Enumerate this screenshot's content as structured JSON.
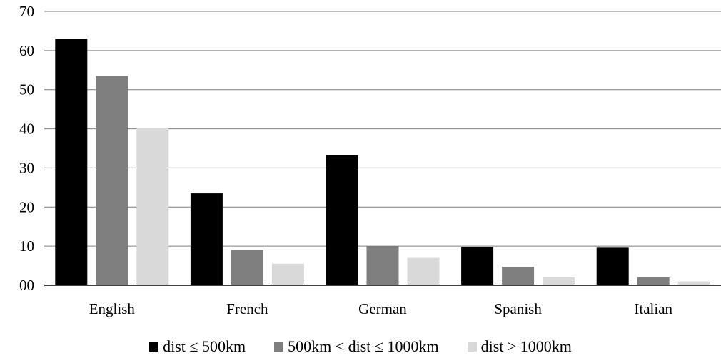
{
  "chart_data": {
    "type": "bar",
    "categories": [
      "English",
      "French",
      "German",
      "Spanish",
      "Italian"
    ],
    "series": [
      {
        "name": "dist ≤ 500km",
        "color": "#000000",
        "values": [
          63.0,
          23.5,
          33.2,
          9.8,
          9.6
        ]
      },
      {
        "name": "500km < dist ≤ 1000km",
        "color": "#7f7f7f",
        "values": [
          53.5,
          9.0,
          10.0,
          4.7,
          2.0
        ]
      },
      {
        "name": "dist > 1000km",
        "color": "#d9d9d9",
        "values": [
          40.2,
          5.5,
          7.0,
          2.0,
          1.0
        ]
      }
    ],
    "y_ticks": [
      "00",
      "10",
      "20",
      "30",
      "40",
      "50",
      "60",
      "70"
    ],
    "ylim": [
      0,
      70
    ],
    "grid": true,
    "legend_position": "bottom"
  }
}
